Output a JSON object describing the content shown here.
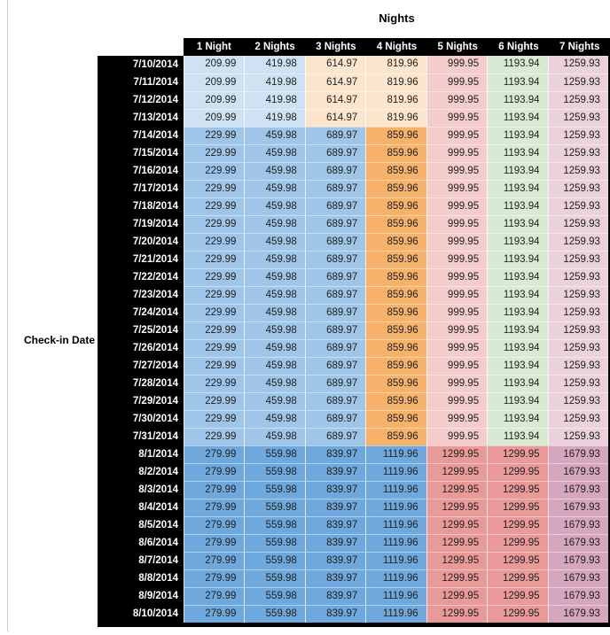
{
  "title": "Nights",
  "row_axis_label": "Check-in Date",
  "colors": {
    "headerBg": "#000000",
    "headerText": "#FFFFFF",
    "valueText": "#212121",
    "sheetGridline": "#CCCCCC",
    "lightBlue": "#CFE2F3",
    "medBlue": "#9FC5E8",
    "blue": "#6FA8DC",
    "lightOrange": "#FCE5CD",
    "orange": "#F6B26B",
    "lightRed": "#F4CCCC",
    "red": "#EA9999",
    "lightGreen": "#D9EAD3",
    "lightPink": "#EAD1DC",
    "mauve": "#D5A6BD"
  },
  "table": {
    "columns": [
      "1 Night",
      "2 Nights",
      "3 Nights",
      "4 Nights",
      "5 Nights",
      "6 Nights",
      "7 Nights"
    ],
    "group_colors": {
      "A": [
        "lightBlue",
        "lightBlue",
        "lightOrange",
        "lightOrange",
        "lightRed",
        "lightGreen",
        "lightPink"
      ],
      "B": [
        "medBlue",
        "medBlue",
        "medBlue",
        "orange",
        "lightRed",
        "lightGreen",
        "lightPink"
      ],
      "C": [
        "blue",
        "blue",
        "blue",
        "blue",
        "red",
        "red",
        "mauve"
      ]
    },
    "rows": [
      {
        "date": "7/10/2014",
        "group": "A",
        "values": [
          "209.99",
          "419.98",
          "614.97",
          "819.96",
          "999.95",
          "1193.94",
          "1259.93"
        ]
      },
      {
        "date": "7/11/2014",
        "group": "A",
        "values": [
          "209.99",
          "419.98",
          "614.97",
          "819.96",
          "999.95",
          "1193.94",
          "1259.93"
        ]
      },
      {
        "date": "7/12/2014",
        "group": "A",
        "values": [
          "209.99",
          "419.98",
          "614.97",
          "819.96",
          "999.95",
          "1193.94",
          "1259.93"
        ]
      },
      {
        "date": "7/13/2014",
        "group": "A",
        "values": [
          "209.99",
          "419.98",
          "614.97",
          "819.96",
          "999.95",
          "1193.94",
          "1259.93"
        ]
      },
      {
        "date": "7/14/2014",
        "group": "B",
        "values": [
          "229.99",
          "459.98",
          "689.97",
          "859.96",
          "999.95",
          "1193.94",
          "1259.93"
        ]
      },
      {
        "date": "7/15/2014",
        "group": "B",
        "values": [
          "229.99",
          "459.98",
          "689.97",
          "859.96",
          "999.95",
          "1193.94",
          "1259.93"
        ]
      },
      {
        "date": "7/16/2014",
        "group": "B",
        "values": [
          "229.99",
          "459.98",
          "689.97",
          "859.96",
          "999.95",
          "1193.94",
          "1259.93"
        ]
      },
      {
        "date": "7/17/2014",
        "group": "B",
        "values": [
          "229.99",
          "459.98",
          "689.97",
          "859.96",
          "999.95",
          "1193.94",
          "1259.93"
        ]
      },
      {
        "date": "7/18/2014",
        "group": "B",
        "values": [
          "229.99",
          "459.98",
          "689.97",
          "859.96",
          "999.95",
          "1193.94",
          "1259.93"
        ]
      },
      {
        "date": "7/19/2014",
        "group": "B",
        "values": [
          "229.99",
          "459.98",
          "689.97",
          "859.96",
          "999.95",
          "1193.94",
          "1259.93"
        ]
      },
      {
        "date": "7/20/2014",
        "group": "B",
        "values": [
          "229.99",
          "459.98",
          "689.97",
          "859.96",
          "999.95",
          "1193.94",
          "1259.93"
        ]
      },
      {
        "date": "7/21/2014",
        "group": "B",
        "values": [
          "229.99",
          "459.98",
          "689.97",
          "859.96",
          "999.95",
          "1193.94",
          "1259.93"
        ]
      },
      {
        "date": "7/22/2014",
        "group": "B",
        "values": [
          "229.99",
          "459.98",
          "689.97",
          "859.96",
          "999.95",
          "1193.94",
          "1259.93"
        ]
      },
      {
        "date": "7/23/2014",
        "group": "B",
        "values": [
          "229.99",
          "459.98",
          "689.97",
          "859.96",
          "999.95",
          "1193.94",
          "1259.93"
        ]
      },
      {
        "date": "7/24/2014",
        "group": "B",
        "values": [
          "229.99",
          "459.98",
          "689.97",
          "859.96",
          "999.95",
          "1193.94",
          "1259.93"
        ]
      },
      {
        "date": "7/25/2014",
        "group": "B",
        "values": [
          "229.99",
          "459.98",
          "689.97",
          "859.96",
          "999.95",
          "1193.94",
          "1259.93"
        ]
      },
      {
        "date": "7/26/2014",
        "group": "B",
        "values": [
          "229.99",
          "459.98",
          "689.97",
          "859.96",
          "999.95",
          "1193.94",
          "1259.93"
        ]
      },
      {
        "date": "7/27/2014",
        "group": "B",
        "values": [
          "229.99",
          "459.98",
          "689.97",
          "859.96",
          "999.95",
          "1193.94",
          "1259.93"
        ]
      },
      {
        "date": "7/28/2014",
        "group": "B",
        "values": [
          "229.99",
          "459.98",
          "689.97",
          "859.96",
          "999.95",
          "1193.94",
          "1259.93"
        ]
      },
      {
        "date": "7/29/2014",
        "group": "B",
        "values": [
          "229.99",
          "459.98",
          "689.97",
          "859.96",
          "999.95",
          "1193.94",
          "1259.93"
        ]
      },
      {
        "date": "7/30/2014",
        "group": "B",
        "values": [
          "229.99",
          "459.98",
          "689.97",
          "859.96",
          "999.95",
          "1193.94",
          "1259.93"
        ]
      },
      {
        "date": "7/31/2014",
        "group": "B",
        "values": [
          "229.99",
          "459.98",
          "689.97",
          "859.96",
          "999.95",
          "1193.94",
          "1259.93"
        ]
      },
      {
        "date": "8/1/2014",
        "group": "C",
        "values": [
          "279.99",
          "559.98",
          "839.97",
          "1119.96",
          "1299.95",
          "1299.95",
          "1679.93"
        ]
      },
      {
        "date": "8/2/2014",
        "group": "C",
        "values": [
          "279.99",
          "559.98",
          "839.97",
          "1119.96",
          "1299.95",
          "1299.95",
          "1679.93"
        ]
      },
      {
        "date": "8/3/2014",
        "group": "C",
        "values": [
          "279.99",
          "559.98",
          "839.97",
          "1119.96",
          "1299.95",
          "1299.95",
          "1679.93"
        ]
      },
      {
        "date": "8/4/2014",
        "group": "C",
        "values": [
          "279.99",
          "559.98",
          "839.97",
          "1119.96",
          "1299.95",
          "1299.95",
          "1679.93"
        ]
      },
      {
        "date": "8/5/2014",
        "group": "C",
        "values": [
          "279.99",
          "559.98",
          "839.97",
          "1119.96",
          "1299.95",
          "1299.95",
          "1679.93"
        ]
      },
      {
        "date": "8/6/2014",
        "group": "C",
        "values": [
          "279.99",
          "559.98",
          "839.97",
          "1119.96",
          "1299.95",
          "1299.95",
          "1679.93"
        ]
      },
      {
        "date": "8/7/2014",
        "group": "C",
        "values": [
          "279.99",
          "559.98",
          "839.97",
          "1119.96",
          "1299.95",
          "1299.95",
          "1679.93"
        ]
      },
      {
        "date": "8/8/2014",
        "group": "C",
        "values": [
          "279.99",
          "559.98",
          "839.97",
          "1119.96",
          "1299.95",
          "1299.95",
          "1679.93"
        ]
      },
      {
        "date": "8/9/2014",
        "group": "C",
        "values": [
          "279.99",
          "559.98",
          "839.97",
          "1119.96",
          "1299.95",
          "1299.95",
          "1679.93"
        ]
      },
      {
        "date": "8/10/2014",
        "group": "C",
        "values": [
          "279.99",
          "559.98",
          "839.97",
          "1119.96",
          "1299.95",
          "1299.95",
          "1679.93"
        ]
      }
    ]
  }
}
